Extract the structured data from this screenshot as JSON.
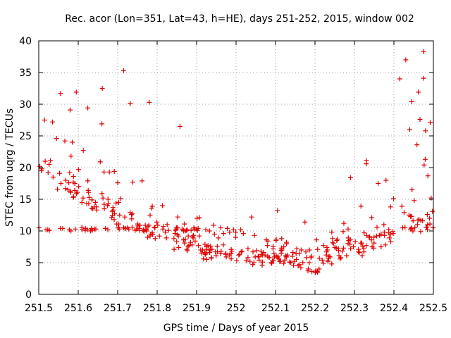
{
  "chart_data": {
    "type": "scatter",
    "title": "Rec. acor (Lon=351, Lat=43, h=HE), days 251-252, 2015, window 002",
    "xlabel": "GPS time / Days of year 2015",
    "ylabel": "STEC from uqrg / TECUs",
    "xlim": [
      251.5,
      252.5
    ],
    "ylim": [
      0,
      40
    ],
    "xticks": [
      251.5,
      251.6,
      251.7,
      251.8,
      251.9,
      252,
      252.1,
      252.2,
      252.3,
      252.4,
      252.5
    ],
    "xtick_labels": [
      "251.5",
      "251.6",
      "251.7",
      "251.8",
      "251.9",
      "252",
      "252.1",
      "252.2",
      "252.3",
      "252.4",
      "252.5"
    ],
    "yticks": [
      0,
      5,
      10,
      15,
      20,
      25,
      30,
      35,
      40
    ],
    "ytick_labels": [
      "0",
      "5",
      "10",
      "15",
      "20",
      "25",
      "30",
      "35",
      "40"
    ],
    "grid": true,
    "marker": "+",
    "color": "#e00000",
    "series": [
      {
        "name": "scatter-points",
        "x": [],
        "y": []
      }
    ]
  }
}
